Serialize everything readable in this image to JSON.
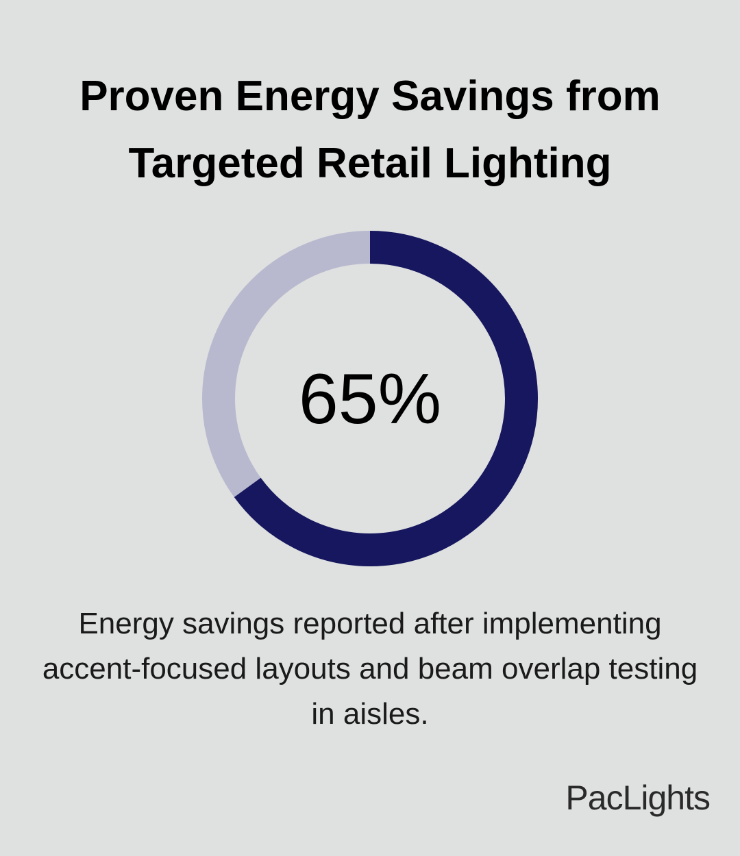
{
  "chart_data": {
    "type": "donut",
    "title": "Proven Energy Savings from Targeted Retail Lighting",
    "values": [
      65
    ],
    "value_labels": [
      "65%"
    ],
    "color": "#16175e",
    "track_color": "#b8b9ce",
    "caption": "Energy savings reported after implementing accent-focused layouts and beam overlap testing in aisles."
  },
  "footer": {
    "brand": "PacLights"
  }
}
